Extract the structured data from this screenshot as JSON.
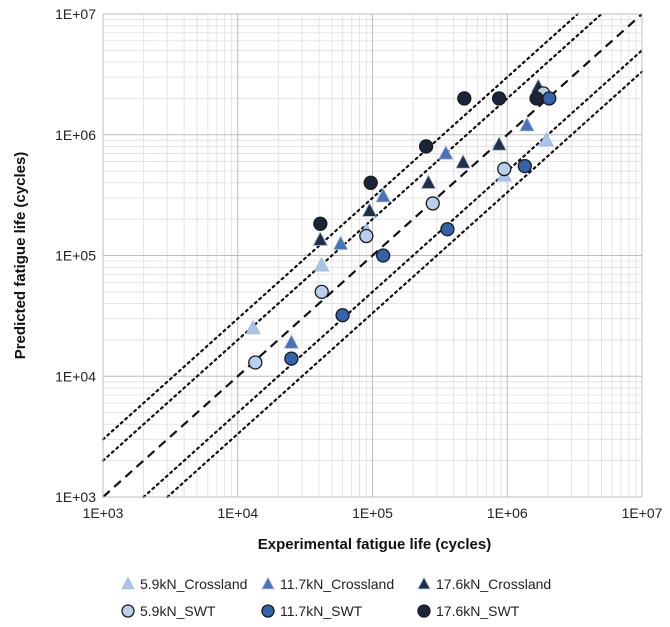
{
  "chart_data": {
    "type": "scatter",
    "title": "",
    "xlabel": "Experimental fatigue life (cycles)",
    "ylabel": "Predicted  fatigue life (cycles)",
    "xscale": "log",
    "yscale": "log",
    "xlim": [
      1000,
      10000000
    ],
    "ylim": [
      1000,
      10000000
    ],
    "x_ticks": [
      "1E+03",
      "1E+04",
      "1E+05",
      "1E+06",
      "1E+07"
    ],
    "y_ticks": [
      "1E+03",
      "1E+04",
      "1E+05",
      "1E+06",
      "1E+07"
    ],
    "grid": true,
    "legend_position": "bottom",
    "reference_lines": [
      {
        "factor": 1,
        "style": "dashed"
      },
      {
        "factor": 2,
        "style": "dotted"
      },
      {
        "factor": 0.5,
        "style": "dotted"
      },
      {
        "factor": 3,
        "style": "dotted"
      },
      {
        "factor": 0.333,
        "style": "dotted"
      }
    ],
    "series": [
      {
        "name": "5.9kN_Crossland",
        "marker": "triangle",
        "color": "#a9c4eb",
        "points": [
          [
            13000,
            25000
          ],
          [
            42000,
            83000
          ],
          [
            90000,
            160000
          ],
          [
            950000,
            460000
          ],
          [
            1950000,
            900000
          ]
        ]
      },
      {
        "name": "11.7kN_Crossland",
        "marker": "triangle",
        "color": "#4a72b8",
        "points": [
          [
            25000,
            19000
          ],
          [
            58000,
            125000
          ],
          [
            120000,
            310000
          ],
          [
            350000,
            700000
          ],
          [
            1400000,
            1200000
          ]
        ]
      },
      {
        "name": "17.6kN_Crossland",
        "marker": "triangle",
        "color": "#1f2f48",
        "points": [
          [
            41000,
            135000
          ],
          [
            95000,
            235000
          ],
          [
            260000,
            400000
          ],
          [
            470000,
            590000
          ],
          [
            870000,
            830000
          ],
          [
            1700000,
            2500000
          ]
        ]
      },
      {
        "name": "5.9kN_SWT",
        "marker": "circle",
        "color": "#b8d0ee",
        "points": [
          [
            13500,
            13000
          ],
          [
            42000,
            50000
          ],
          [
            90000,
            145000
          ],
          [
            280000,
            270000
          ],
          [
            950000,
            520000
          ],
          [
            1850000,
            2200000
          ]
        ]
      },
      {
        "name": "11.7kN_SWT",
        "marker": "circle",
        "color": "#3463ad",
        "points": [
          [
            25000,
            14000
          ],
          [
            60000,
            32000
          ],
          [
            120000,
            100000
          ],
          [
            360000,
            165000
          ],
          [
            1350000,
            550000
          ],
          [
            2050000,
            2000000
          ]
        ]
      },
      {
        "name": "17.6kN_SWT",
        "marker": "circle",
        "color": "#1a2638",
        "points": [
          [
            41000,
            183000
          ],
          [
            97000,
            400000
          ],
          [
            250000,
            800000
          ],
          [
            480000,
            2000000
          ],
          [
            870000,
            2000000
          ],
          [
            1650000,
            2000000
          ]
        ]
      }
    ]
  }
}
